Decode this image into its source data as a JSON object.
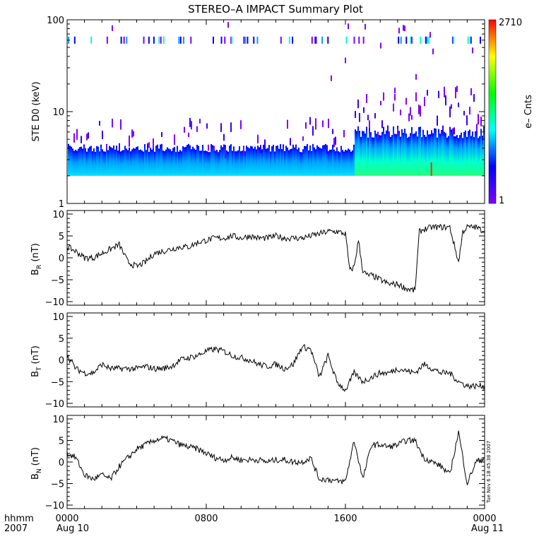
{
  "title": "STEREO–A IMPACT Summary Plot",
  "bottom_left": {
    "line1": "hhmm",
    "line2": "2007"
  },
  "timestamp": "Tue Nov  6 18:45:38 2007",
  "colors": {
    "line": "#000000",
    "background": "#ffffff"
  },
  "chart_data": [
    {
      "type": "heatmap",
      "ylabel": "STE D0 (keV)",
      "y_scale": "log",
      "ylim": [
        1,
        100
      ],
      "y_ticks": [
        "1",
        "10",
        "100"
      ],
      "colorbar": {
        "label": "e– Cnts",
        "min": "1",
        "max": "2710",
        "stops": [
          "#7f00ff",
          "#0000ff",
          "#00ffff",
          "#00ff00",
          "#ffff00",
          "#ff0000"
        ]
      },
      "x_hours": [
        0,
        24
      ],
      "approx": {
        "floor_keV": 2,
        "quiet_top_keV": 4,
        "active_top_keV": 6,
        "change_hour": 16.5
      }
    },
    {
      "type": "line",
      "ylabel": "B",
      "ylabel_sub": "R",
      "ylabel_unit": "(nT)",
      "ylim": [
        -10,
        10
      ],
      "y_ticks": [
        "−10",
        "−5",
        "0",
        "5",
        "10"
      ],
      "x": [
        0,
        0.5,
        1,
        1.5,
        2,
        2.5,
        3,
        3.5,
        4,
        4.5,
        5,
        5.5,
        6,
        6.5,
        7,
        7.5,
        8,
        8.5,
        9,
        9.5,
        10,
        10.5,
        11,
        11.5,
        12,
        12.5,
        13,
        13.5,
        14,
        14.5,
        15,
        15.5,
        16,
        16.25,
        16.5,
        16.75,
        17,
        17.25,
        17.5,
        18,
        18.5,
        19,
        19.5,
        20,
        20.25,
        20.5,
        21,
        21.5,
        22,
        22.5,
        22.75,
        23,
        23.5,
        24
      ],
      "y": [
        2.5,
        1.5,
        0,
        0,
        1,
        2,
        3,
        -1,
        -2,
        -1,
        1,
        1.5,
        2,
        2.5,
        2.5,
        3.5,
        4,
        4.5,
        4.5,
        5,
        4.5,
        5,
        4.5,
        4.5,
        5,
        4.5,
        4.5,
        4.5,
        5,
        5.5,
        6,
        6,
        5.5,
        -3,
        -2,
        4,
        -3,
        -4,
        -4,
        -5,
        -6,
        -6,
        -7,
        -7.5,
        6,
        6.5,
        7,
        7,
        7,
        -1,
        6,
        7,
        7,
        6
      ]
    },
    {
      "type": "line",
      "ylabel": "B",
      "ylabel_sub": "T",
      "ylabel_unit": "(nT)",
      "ylim": [
        -10,
        10
      ],
      "y_ticks": [
        "−10",
        "−5",
        "0",
        "5",
        "10"
      ],
      "x": [
        0,
        0.5,
        1,
        1.5,
        2,
        2.5,
        3,
        3.5,
        4,
        4.5,
        5,
        5.5,
        6,
        6.5,
        7,
        7.5,
        8,
        8.5,
        9,
        9.5,
        10,
        10.5,
        11,
        11.5,
        12,
        12.5,
        13,
        13.5,
        14,
        14.5,
        15,
        15.5,
        16,
        16.5,
        17,
        17.5,
        18,
        18.5,
        19,
        19.5,
        20,
        20.5,
        21,
        21.5,
        22,
        22.5,
        23,
        23.5,
        24
      ],
      "y": [
        1,
        -2,
        -3,
        -3,
        -1,
        -2,
        -2,
        -2,
        -2,
        -1.5,
        -2,
        -2,
        -1.5,
        0,
        0.5,
        1,
        2,
        2.5,
        2,
        1,
        0.5,
        0,
        -1,
        -1.5,
        -1,
        -2,
        -1,
        3,
        2.5,
        -4,
        1,
        -5,
        -7,
        -3,
        -5,
        -4,
        -3,
        -3,
        -2,
        -2.5,
        -3,
        -1,
        -2,
        -3,
        -3,
        -5,
        -6,
        -6,
        -6
      ]
    },
    {
      "type": "line",
      "ylabel": "B",
      "ylabel_sub": "N",
      "ylabel_unit": "(nT)",
      "ylim": [
        -10,
        10
      ],
      "y_ticks": [
        "−10",
        "−5",
        "0",
        "5",
        "10"
      ],
      "x": [
        0,
        0.5,
        1,
        1.5,
        2,
        2.5,
        3,
        3.5,
        4,
        4.5,
        5,
        5.5,
        6,
        6.5,
        7,
        7.5,
        8,
        8.5,
        9,
        9.5,
        10,
        10.5,
        11,
        11.5,
        12,
        12.5,
        13,
        13.5,
        14,
        14.5,
        15,
        15.5,
        16,
        16.5,
        17,
        17.5,
        18,
        18.5,
        19,
        19.5,
        20,
        20.5,
        21,
        21.5,
        22,
        22.5,
        23,
        23.5,
        24
      ],
      "y": [
        2,
        1,
        -3,
        -4,
        -3,
        -4,
        -1,
        1,
        3,
        4,
        5,
        5.5,
        5,
        4,
        3.5,
        3,
        2,
        1,
        0.5,
        1,
        0.5,
        0.5,
        0.5,
        0,
        0.5,
        0.5,
        0,
        0,
        1,
        -4,
        -4,
        -4.5,
        -4.5,
        5,
        -4,
        4,
        4,
        3.5,
        4,
        5,
        5,
        1,
        0,
        -1,
        -3,
        7,
        -5,
        0,
        1
      ]
    }
  ],
  "x_axis": {
    "ticks": [
      {
        "hour": 0,
        "label": "0000"
      },
      {
        "hour": 8,
        "label": "0800"
      },
      {
        "hour": 16,
        "label": "1600"
      },
      {
        "hour": 24,
        "label": "0000"
      }
    ],
    "date_left": "Aug 10",
    "date_right": "Aug 11"
  }
}
